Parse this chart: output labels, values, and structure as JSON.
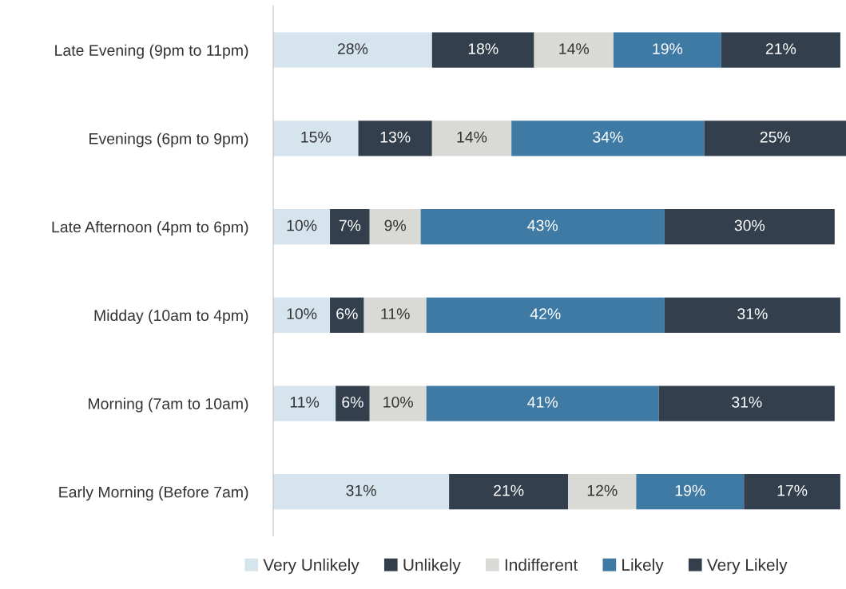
{
  "chart_data": {
    "type": "bar",
    "orientation": "horizontal",
    "stacked": true,
    "legend": "bottom",
    "grid": false,
    "tick_labels": "y",
    "categories": [
      "Late Evening (9pm to 11pm)",
      "Evenings (6pm to 9pm)",
      "Late Afternoon (4pm to 6pm)",
      "Midday (10am to 4pm)",
      "Morning (7am to 10am)",
      "Early Morning (Before 7am)"
    ],
    "series": [
      {
        "name": "Very Unlikely",
        "color": "#d6e4ee",
        "values": [
          28,
          15,
          10,
          10,
          11,
          31
        ],
        "value_labels": [
          "28%",
          "15%",
          "10%",
          "10%",
          "11%",
          "31%"
        ]
      },
      {
        "name": "Unlikely",
        "color": "#333f4c",
        "values": [
          18,
          13,
          7,
          6,
          6,
          21
        ],
        "value_labels": [
          "18%",
          "13%",
          "7%",
          "6%",
          "6%",
          "21%"
        ]
      },
      {
        "name": "Indifferent",
        "color": "#d9d9d6",
        "values": [
          14,
          14,
          9,
          11,
          10,
          12
        ],
        "value_labels": [
          "14%",
          "14%",
          "9%",
          "11%",
          "10%",
          "12%"
        ]
      },
      {
        "name": "Likely",
        "color": "#3e7aa3",
        "values": [
          19,
          34,
          43,
          42,
          41,
          19
        ],
        "value_labels": [
          "19%",
          "34%",
          "43%",
          "42%",
          "41%",
          "19%"
        ]
      },
      {
        "name": "Very Likely",
        "color": "#333f4c",
        "values": [
          21,
          25,
          30,
          31,
          31,
          17
        ],
        "value_labels": [
          "21%",
          "25%",
          "30%",
          "31%",
          "31%",
          "17%"
        ]
      }
    ]
  }
}
